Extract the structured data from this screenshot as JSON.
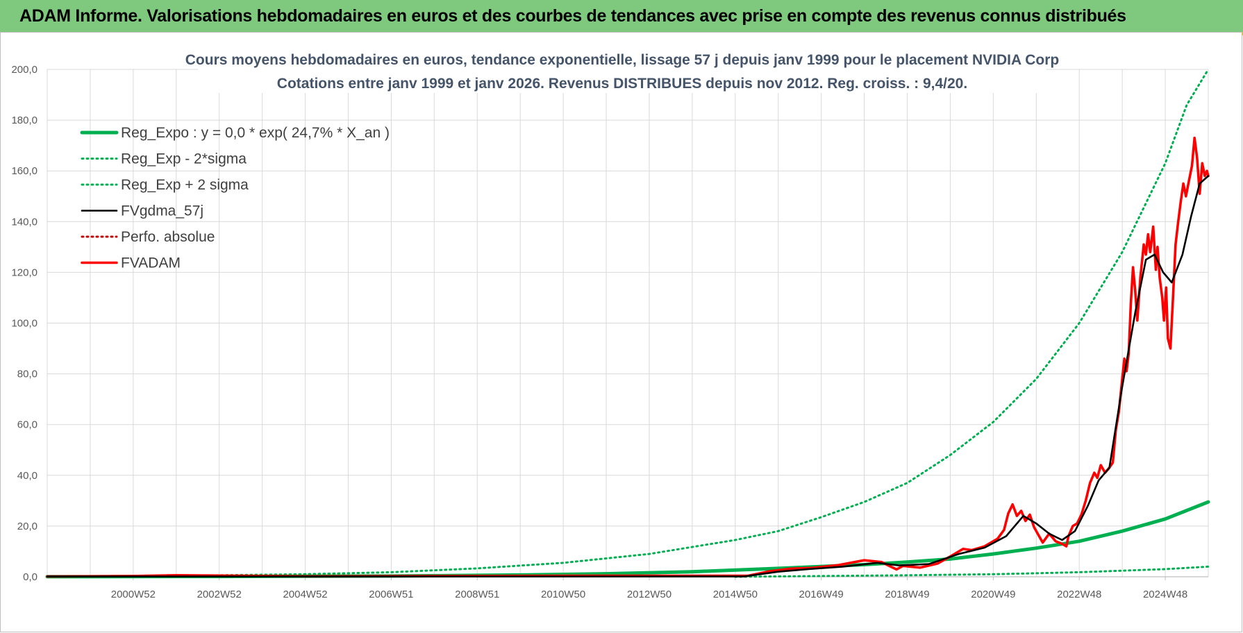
{
  "banner": {
    "title": "ADAM Informe. Valorisations hebdomadaires en euros et des courbes de tendances avec prise en compte des revenus connus distribués"
  },
  "colors": {
    "banner_bg": "#7ec97e",
    "regression": "#00b050",
    "smoothed": "#000000",
    "fvadam": "#ff0000",
    "perfo": "#c00000"
  },
  "chart_data": {
    "type": "line",
    "title": "Cours moyens hebdomadaires en euros, tendance exponentielle, lissage 57 j depuis janv 1999  pour le placement NVIDIA Corp",
    "subtitle": "Cotations entre janv 1999 et janv 2026. Revenus DISTRIBUES depuis nov 2012. Reg. croiss. : 9,4/20.",
    "xlabel": "",
    "ylabel": "",
    "ylim": [
      0,
      200
    ],
    "yticks": [
      "0,0",
      "20,0",
      "40,0",
      "60,0",
      "80,0",
      "100,0",
      "120,0",
      "140,0",
      "160,0",
      "180,0",
      "200,0"
    ],
    "x_tick_labels": [
      "2000W52",
      "2002W52",
      "2004W52",
      "2006W51",
      "2008W51",
      "2010W50",
      "2012W50",
      "2014W50",
      "2016W49",
      "2018W49",
      "2020W49",
      "2022W48",
      "2024W48"
    ],
    "x_tick_years": [
      2001,
      2003,
      2005,
      2007,
      2009,
      2011,
      2013,
      2015,
      2017,
      2019,
      2021,
      2023,
      2025
    ],
    "xlim_years": [
      1999,
      2026
    ],
    "grid": true,
    "legend_position": "top-left",
    "series": [
      {
        "name": "Reg_Expo : y = 0,0 * exp( 24,7% *  X_an )",
        "style": "solid-thick",
        "color": "#00b050",
        "x": [
          1999,
          2003,
          2007,
          2010,
          2012,
          2014,
          2016,
          2018,
          2019,
          2020,
          2021,
          2022,
          2023,
          2024,
          2025,
          2026
        ],
        "y": [
          0.04,
          0.1,
          0.3,
          0.7,
          1.2,
          2.0,
          3.3,
          4.8,
          5.8,
          7.0,
          9.0,
          11.3,
          14.0,
          18.0,
          22.8,
          29.5
        ]
      },
      {
        "name": "Reg_Exp - 2*sigma",
        "style": "dotted",
        "color": "#00b050",
        "x": [
          2015,
          2017,
          2019,
          2021,
          2022,
          2023,
          2024,
          2025,
          2026
        ],
        "y": [
          0.0,
          0.3,
          0.6,
          1.0,
          1.4,
          1.8,
          2.4,
          3.0,
          4.0
        ]
      },
      {
        "name": "Reg_Exp + 2 sigma",
        "style": "dotted",
        "color": "#00b050",
        "x": [
          2000,
          2003,
          2005,
          2007,
          2009,
          2011,
          2013,
          2015,
          2016,
          2017,
          2018,
          2019,
          2020,
          2021,
          2022,
          2023,
          2024,
          2025,
          2025.5,
          2026
        ],
        "y": [
          0.2,
          0.6,
          1.0,
          1.8,
          3.3,
          5.5,
          9.0,
          14.5,
          18.0,
          23.5,
          29.5,
          37.0,
          48.0,
          61.0,
          78.0,
          100.0,
          128.0,
          163.0,
          186.0,
          200.0
        ]
      },
      {
        "name": "FVgdma_57j",
        "style": "solid",
        "color": "#000000",
        "x": [
          1999,
          2015.2,
          2016,
          2016.7,
          2017.5,
          2018.3,
          2018.8,
          2019.5,
          2020.2,
          2020.8,
          2021.3,
          2021.7,
          2022.0,
          2022.3,
          2022.6,
          2022.9,
          2023.2,
          2023.45,
          2023.7,
          2024.0,
          2024.3,
          2024.55,
          2024.75,
          2024.95,
          2025.15,
          2025.4,
          2025.6,
          2025.8,
          2026
        ],
        "y": [
          0.1,
          0.1,
          2.0,
          3.0,
          4.0,
          5.5,
          4.5,
          5.0,
          9.0,
          11.5,
          16.0,
          24.0,
          21.0,
          17.0,
          14.5,
          18.0,
          28.0,
          38.0,
          43.0,
          75.0,
          104.0,
          125.0,
          127.0,
          120.0,
          116.0,
          127.0,
          142.0,
          155.0,
          158.0
        ]
      },
      {
        "name": "Perfo. absolue",
        "style": "dotted",
        "color": "#c00000",
        "x": [],
        "y": []
      },
      {
        "name": "FVADAM",
        "style": "solid-thick",
        "color": "#ff0000",
        "x": [
          1999,
          2001,
          2002,
          2005,
          2008,
          2012,
          2015.3,
          2015.8,
          2016.3,
          2016.8,
          2017.4,
          2018.0,
          2018.4,
          2018.75,
          2018.9,
          2019.3,
          2019.7,
          2020.0,
          2020.3,
          2020.5,
          2020.8,
          2021.1,
          2021.25,
          2021.35,
          2021.45,
          2021.55,
          2021.65,
          2021.75,
          2021.85,
          2021.95,
          2022.05,
          2022.15,
          2022.3,
          2022.45,
          2022.6,
          2022.7,
          2022.75,
          2022.85,
          2022.95,
          2023.05,
          2023.15,
          2023.25,
          2023.35,
          2023.42,
          2023.5,
          2023.6,
          2023.7,
          2023.78,
          2023.85,
          2023.92,
          2024.0,
          2024.05,
          2024.1,
          2024.15,
          2024.2,
          2024.25,
          2024.3,
          2024.35,
          2024.42,
          2024.5,
          2024.55,
          2024.6,
          2024.65,
          2024.72,
          2024.78,
          2024.82,
          2024.87,
          2024.93,
          2024.97,
          2025.02,
          2025.06,
          2025.12,
          2025.18,
          2025.24,
          2025.3,
          2025.36,
          2025.42,
          2025.48,
          2025.55,
          2025.62,
          2025.68,
          2025.74,
          2025.8,
          2025.86,
          2025.92,
          2025.97,
          2026.0
        ],
        "y": [
          0.1,
          0.3,
          0.6,
          0.2,
          0.3,
          0.4,
          0.4,
          2.2,
          3.2,
          3.5,
          4.6,
          6.5,
          5.8,
          2.9,
          4.3,
          3.6,
          5.2,
          8.0,
          11.0,
          10.5,
          12.0,
          15.0,
          18.5,
          25.0,
          28.5,
          24.0,
          26.0,
          22.0,
          24.5,
          19.5,
          16.5,
          13.5,
          17.0,
          14.0,
          13.0,
          12.0,
          16.0,
          20.0,
          21.0,
          24.5,
          30.0,
          37.0,
          41.0,
          39.0,
          44.0,
          41.0,
          43.0,
          45.0,
          58.0,
          65.0,
          78.0,
          86.0,
          81.0,
          88.0,
          108.0,
          122.0,
          113.0,
          101.0,
          118.0,
          131.0,
          127.0,
          135.0,
          128.0,
          138.0,
          121.0,
          130.0,
          118.0,
          110.0,
          101.0,
          114.0,
          94.0,
          90.0,
          110.0,
          131.0,
          140.0,
          148.0,
          155.0,
          150.0,
          156.0,
          162.0,
          173.0,
          165.0,
          151.0,
          163.0,
          158.0,
          160.0,
          158.0
        ]
      }
    ]
  }
}
